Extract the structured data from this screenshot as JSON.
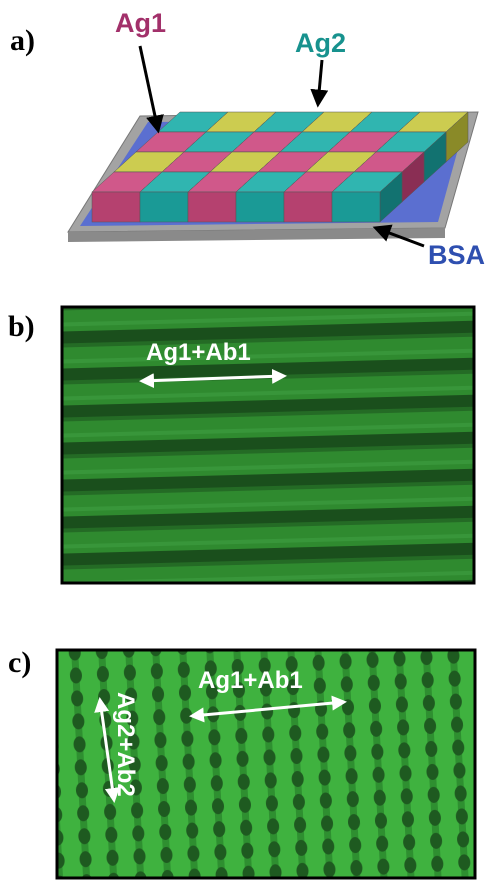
{
  "panels": [
    {
      "label": "a)",
      "annotations": [
        "Ag1",
        "Ag2",
        "BSA"
      ]
    },
    {
      "label": "b)",
      "annotations": [
        "Ag1+Ab1"
      ]
    },
    {
      "label": "c)",
      "annotations": [
        "Ag1+Ab1",
        "Ag2+Ab2"
      ]
    }
  ]
}
